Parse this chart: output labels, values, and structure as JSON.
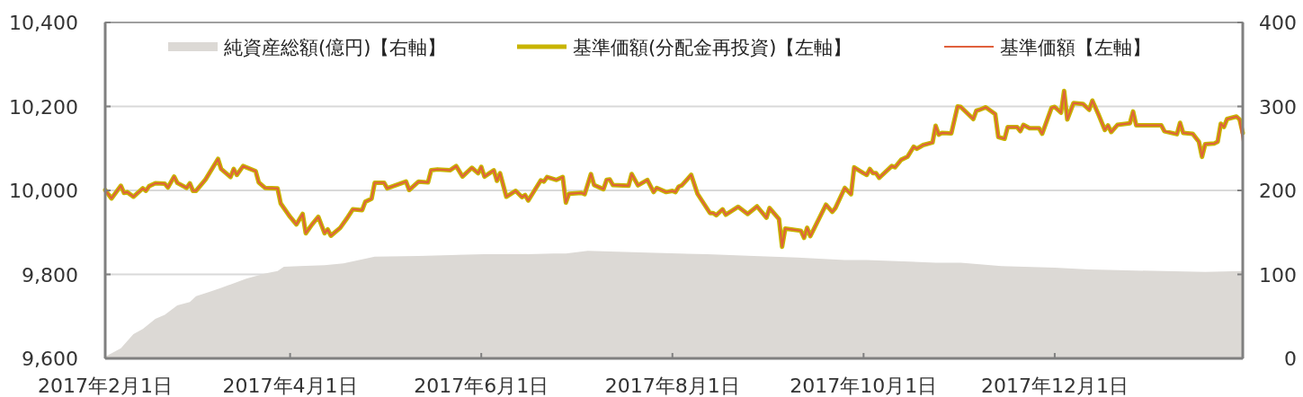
{
  "chart_data": {
    "type": "line",
    "xlim": [
      "2017-02-01",
      "2018-01-30"
    ],
    "xticks": [
      {
        "value": "2017-02-01",
        "label": "2017年2月1日"
      },
      {
        "value": "2017-04-01",
        "label": "2017年4月1日"
      },
      {
        "value": "2017-06-01",
        "label": "2017年6月1日"
      },
      {
        "value": "2017-08-01",
        "label": "2017年8月1日"
      },
      {
        "value": "2017-10-01",
        "label": "2017年10月1日"
      },
      {
        "value": "2017-12-01",
        "label": "2017年12月1日"
      }
    ],
    "ylim": [
      9600,
      10400
    ],
    "yticks": [
      {
        "value": 9600,
        "label": "9,600"
      },
      {
        "value": 9800,
        "label": "9,800"
      },
      {
        "value": 10000,
        "label": "10,000"
      },
      {
        "value": 10200,
        "label": "10,200"
      },
      {
        "value": 10400,
        "label": "10,400"
      }
    ],
    "y2lim": [
      0,
      400
    ],
    "y2ticks": [
      0,
      100,
      200,
      300,
      400
    ],
    "grid": "y",
    "legend": "top",
    "series": [
      {
        "name": "純資産総額(億円)【右軸】",
        "type": "area",
        "axis": "y2",
        "color": "#dcd9d5",
        "x": [
          "2017-02-01",
          "2017-02-02",
          "2017-02-06",
          "2017-02-10",
          "2017-02-13",
          "2017-02-17",
          "2017-02-20",
          "2017-02-24",
          "2017-02-28",
          "2017-03-02",
          "2017-03-06",
          "2017-03-10",
          "2017-03-13",
          "2017-03-18",
          "2017-03-24",
          "2017-03-28",
          "2017-03-30",
          "2017-04-04",
          "2017-04-12",
          "2017-04-18",
          "2017-04-23",
          "2017-04-28",
          "2017-05-12",
          "2017-06-02",
          "2017-06-16",
          "2017-06-24",
          "2017-06-28",
          "2017-07-05",
          "2017-07-24",
          "2017-08-12",
          "2017-08-27",
          "2017-09-10",
          "2017-09-25",
          "2017-10-02",
          "2017-10-24",
          "2017-11-01",
          "2017-11-14",
          "2017-12-01",
          "2017-12-12",
          "2017-12-21",
          "2018-01-18",
          "2018-01-30"
        ],
        "values": [
          2,
          4,
          12,
          29,
          35,
          47,
          52,
          63,
          67,
          74,
          79,
          84,
          88,
          95,
          101,
          104,
          109,
          110,
          111,
          113,
          117,
          121,
          122,
          124,
          124,
          125,
          125,
          128,
          126,
          124,
          122,
          120,
          117,
          117,
          114,
          114,
          110,
          108,
          106,
          105,
          103,
          104
        ]
      },
      {
        "name": "基準価額(分配金再投資)【左軸】",
        "type": "line",
        "color": "#c8b400",
        "x": [
          "2017-02-01",
          "2017-02-03",
          "2017-02-06",
          "2017-02-07",
          "2017-02-08",
          "2017-02-10",
          "2017-02-13",
          "2017-02-14",
          "2017-02-15",
          "2017-02-17",
          "2017-02-20",
          "2017-02-21",
          "2017-02-23",
          "2017-02-24",
          "2017-02-27",
          "2017-02-28",
          "2017-03-01",
          "2017-03-02",
          "2017-03-05",
          "2017-03-09",
          "2017-03-10",
          "2017-03-13",
          "2017-03-14",
          "2017-03-15",
          "2017-03-17",
          "2017-03-21",
          "2017-03-22",
          "2017-03-24",
          "2017-03-28",
          "2017-03-29",
          "2017-04-01",
          "2017-04-03",
          "2017-04-05",
          "2017-04-06",
          "2017-04-08",
          "2017-04-10",
          "2017-04-12",
          "2017-04-13",
          "2017-04-14",
          "2017-04-17",
          "2017-04-19",
          "2017-04-21",
          "2017-04-24",
          "2017-04-25",
          "2017-04-27",
          "2017-04-28",
          "2017-05-01",
          "2017-05-02",
          "2017-05-08",
          "2017-05-09",
          "2017-05-12",
          "2017-05-15",
          "2017-05-16",
          "2017-05-18",
          "2017-05-22",
          "2017-05-24",
          "2017-05-26",
          "2017-05-29",
          "2017-05-31",
          "2017-06-01",
          "2017-06-02",
          "2017-06-05",
          "2017-06-06",
          "2017-06-07",
          "2017-06-09",
          "2017-06-12",
          "2017-06-14",
          "2017-06-15",
          "2017-06-16",
          "2017-06-18",
          "2017-06-20",
          "2017-06-21",
          "2017-06-22",
          "2017-06-25",
          "2017-06-27",
          "2017-06-28",
          "2017-06-29",
          "2017-07-03",
          "2017-07-04",
          "2017-07-06",
          "2017-07-07",
          "2017-07-10",
          "2017-07-11",
          "2017-07-12",
          "2017-07-13",
          "2017-07-18",
          "2017-07-19",
          "2017-07-21",
          "2017-07-24",
          "2017-07-26",
          "2017-07-27",
          "2017-07-30",
          "2017-08-01",
          "2017-08-02",
          "2017-08-03",
          "2017-08-04",
          "2017-08-07",
          "2017-08-09",
          "2017-08-13",
          "2017-08-14",
          "2017-08-15",
          "2017-08-17",
          "2017-08-18",
          "2017-08-22",
          "2017-08-25",
          "2017-08-28",
          "2017-08-31",
          "2017-09-01",
          "2017-09-04",
          "2017-09-05",
          "2017-09-06",
          "2017-09-11",
          "2017-09-12",
          "2017-09-13",
          "2017-09-14",
          "2017-09-19",
          "2017-09-21",
          "2017-09-22",
          "2017-09-25",
          "2017-09-27",
          "2017-09-28",
          "2017-10-01",
          "2017-10-02",
          "2017-10-03",
          "2017-10-04",
          "2017-10-05",
          "2017-10-06",
          "2017-10-10",
          "2017-10-11",
          "2017-10-13",
          "2017-10-15",
          "2017-10-17",
          "2017-10-18",
          "2017-10-20",
          "2017-10-23",
          "2017-10-24",
          "2017-10-25",
          "2017-10-26",
          "2017-10-29",
          "2017-10-31",
          "2017-11-01",
          "2017-11-05",
          "2017-11-06",
          "2017-11-07",
          "2017-11-09",
          "2017-11-12",
          "2017-11-13",
          "2017-11-15",
          "2017-11-16",
          "2017-11-19",
          "2017-11-20",
          "2017-11-21",
          "2017-11-23",
          "2017-11-26",
          "2017-11-27",
          "2017-11-30",
          "2017-12-01",
          "2017-12-03",
          "2017-12-04",
          "2017-12-05",
          "2017-12-07",
          "2017-12-10",
          "2017-12-12",
          "2017-12-13",
          "2017-12-15",
          "2017-12-17",
          "2017-12-18",
          "2017-12-19",
          "2017-12-21",
          "2017-12-25",
          "2017-12-26",
          "2017-12-27",
          "2018-01-04",
          "2018-01-05",
          "2018-01-09",
          "2018-01-10",
          "2018-01-11",
          "2018-01-14",
          "2018-01-16",
          "2018-01-17",
          "2018-01-18",
          "2018-01-21",
          "2018-01-22",
          "2018-01-23",
          "2018-01-24",
          "2018-01-25",
          "2018-01-28",
          "2018-01-29",
          "2018-01-30"
        ],
        "values": [
          10001,
          9981,
          10011,
          9994,
          9996,
          9985,
          10005,
          9999,
          10010,
          10017,
          10016,
          10007,
          10033,
          10018,
          10006,
          10017,
          9999,
          9999,
          10026,
          10075,
          10051,
          10032,
          10051,
          10037,
          10058,
          10046,
          10019,
          10006,
          10005,
          9969,
          9937,
          9919,
          9944,
          9898,
          9919,
          9937,
          9898,
          9907,
          9892,
          9911,
          9932,
          9955,
          9953,
          9973,
          9980,
          10018,
          10018,
          10005,
          10021,
          10001,
          10021,
          10019,
          10048,
          10050,
          10048,
          10058,
          10033,
          10054,
          10041,
          10056,
          10033,
          10048,
          10023,
          10041,
          9985,
          9999,
          9984,
          9989,
          9976,
          10000,
          10024,
          10021,
          10032,
          10025,
          10032,
          9971,
          9992,
          9994,
          9991,
          10039,
          10013,
          10003,
          10025,
          10026,
          10013,
          10011,
          10039,
          10012,
          10025,
          9996,
          10006,
          9996,
          9999,
          9996,
          10009,
          10012,
          10037,
          9992,
          9946,
          9946,
          9941,
          9955,
          9942,
          9961,
          9944,
          9962,
          9935,
          9958,
          9932,
          9866,
          9909,
          9904,
          9887,
          9911,
          9891,
          9966,
          9949,
          9958,
          10006,
          9991,
          10055,
          10041,
          10037,
          10051,
          10041,
          10041,
          10030,
          10058,
          10055,
          10073,
          10080,
          10104,
          10099,
          10108,
          10114,
          10154,
          10133,
          10137,
          10136,
          10200,
          10199,
          10170,
          10190,
          10192,
          10198,
          10182,
          10127,
          10123,
          10151,
          10151,
          10141,
          10156,
          10148,
          10148,
          10135,
          10197,
          10199,
          10185,
          10237,
          10169,
          10208,
          10206,
          10192,
          10214,
          10180,
          10144,
          10155,
          10139,
          10156,
          10160,
          10188,
          10155,
          10155,
          10141,
          10134,
          10161,
          10137,
          10135,
          10116,
          10080,
          10110,
          10112,
          10116,
          10159,
          10151,
          10170,
          10176,
          10169,
          10137
        ]
      },
      {
        "name": "基準価額【左軸】",
        "type": "line",
        "color": "#e0603c",
        "x": [
          "2017-02-01",
          "2017-02-03",
          "2017-02-06",
          "2017-02-07",
          "2017-02-08",
          "2017-02-10",
          "2017-02-13",
          "2017-02-14",
          "2017-02-15",
          "2017-02-17",
          "2017-02-20",
          "2017-02-21",
          "2017-02-23",
          "2017-02-24",
          "2017-02-27",
          "2017-02-28",
          "2017-03-01",
          "2017-03-02",
          "2017-03-05",
          "2017-03-09",
          "2017-03-10",
          "2017-03-13",
          "2017-03-14",
          "2017-03-15",
          "2017-03-17",
          "2017-03-21",
          "2017-03-22",
          "2017-03-24",
          "2017-03-28",
          "2017-03-29",
          "2017-04-01",
          "2017-04-03",
          "2017-04-05",
          "2017-04-06",
          "2017-04-08",
          "2017-04-10",
          "2017-04-12",
          "2017-04-13",
          "2017-04-14",
          "2017-04-17",
          "2017-04-19",
          "2017-04-21",
          "2017-04-24",
          "2017-04-25",
          "2017-04-27",
          "2017-04-28",
          "2017-05-01",
          "2017-05-02",
          "2017-05-08",
          "2017-05-09",
          "2017-05-12",
          "2017-05-15",
          "2017-05-16",
          "2017-05-18",
          "2017-05-22",
          "2017-05-24",
          "2017-05-26",
          "2017-05-29",
          "2017-05-31",
          "2017-06-01",
          "2017-06-02",
          "2017-06-05",
          "2017-06-06",
          "2017-06-07",
          "2017-06-09",
          "2017-06-12",
          "2017-06-14",
          "2017-06-15",
          "2017-06-16",
          "2017-06-18",
          "2017-06-20",
          "2017-06-21",
          "2017-06-22",
          "2017-06-25",
          "2017-06-27",
          "2017-06-28",
          "2017-06-29",
          "2017-07-03",
          "2017-07-04",
          "2017-07-06",
          "2017-07-07",
          "2017-07-10",
          "2017-07-11",
          "2017-07-12",
          "2017-07-13",
          "2017-07-18",
          "2017-07-19",
          "2017-07-21",
          "2017-07-24",
          "2017-07-26",
          "2017-07-27",
          "2017-07-30",
          "2017-08-01",
          "2017-08-02",
          "2017-08-03",
          "2017-08-04",
          "2017-08-07",
          "2017-08-09",
          "2017-08-13",
          "2017-08-14",
          "2017-08-15",
          "2017-08-17",
          "2017-08-18",
          "2017-08-22",
          "2017-08-25",
          "2017-08-28",
          "2017-08-31",
          "2017-09-01",
          "2017-09-04",
          "2017-09-05",
          "2017-09-06",
          "2017-09-11",
          "2017-09-12",
          "2017-09-13",
          "2017-09-14",
          "2017-09-19",
          "2017-09-21",
          "2017-09-22",
          "2017-09-25",
          "2017-09-27",
          "2017-09-28",
          "2017-10-01",
          "2017-10-02",
          "2017-10-03",
          "2017-10-04",
          "2017-10-05",
          "2017-10-06",
          "2017-10-10",
          "2017-10-11",
          "2017-10-13",
          "2017-10-15",
          "2017-10-17",
          "2017-10-18",
          "2017-10-20",
          "2017-10-23",
          "2017-10-24",
          "2017-10-25",
          "2017-10-26",
          "2017-10-29",
          "2017-10-31",
          "2017-11-01",
          "2017-11-05",
          "2017-11-06",
          "2017-11-07",
          "2017-11-09",
          "2017-11-12",
          "2017-11-13",
          "2017-11-15",
          "2017-11-16",
          "2017-11-19",
          "2017-11-20",
          "2017-11-21",
          "2017-11-23",
          "2017-11-26",
          "2017-11-27",
          "2017-11-30",
          "2017-12-01",
          "2017-12-03",
          "2017-12-04",
          "2017-12-05",
          "2017-12-07",
          "2017-12-10",
          "2017-12-12",
          "2017-12-13",
          "2017-12-15",
          "2017-12-17",
          "2017-12-18",
          "2017-12-19",
          "2017-12-21",
          "2017-12-25",
          "2017-12-26",
          "2017-12-27",
          "2018-01-04",
          "2018-01-05",
          "2018-01-09",
          "2018-01-10",
          "2018-01-11",
          "2018-01-14",
          "2018-01-16",
          "2018-01-17",
          "2018-01-18",
          "2018-01-21",
          "2018-01-22",
          "2018-01-23",
          "2018-01-24",
          "2018-01-25",
          "2018-01-28",
          "2018-01-29",
          "2018-01-30"
        ],
        "values": [
          10001,
          9981,
          10011,
          9994,
          9996,
          9985,
          10005,
          9999,
          10010,
          10017,
          10016,
          10007,
          10033,
          10018,
          10006,
          10017,
          9999,
          9999,
          10026,
          10075,
          10051,
          10032,
          10051,
          10037,
          10058,
          10046,
          10019,
          10006,
          10005,
          9969,
          9937,
          9919,
          9944,
          9898,
          9919,
          9937,
          9898,
          9907,
          9892,
          9911,
          9932,
          9955,
          9953,
          9973,
          9980,
          10018,
          10018,
          10005,
          10021,
          10001,
          10021,
          10019,
          10048,
          10050,
          10048,
          10058,
          10033,
          10054,
          10041,
          10056,
          10033,
          10048,
          10023,
          10041,
          9985,
          9999,
          9984,
          9989,
          9976,
          10000,
          10024,
          10021,
          10032,
          10025,
          10032,
          9971,
          9992,
          9994,
          9991,
          10039,
          10013,
          10003,
          10025,
          10026,
          10013,
          10011,
          10039,
          10012,
          10025,
          9996,
          10006,
          9996,
          9999,
          9996,
          10009,
          10012,
          10037,
          9992,
          9946,
          9946,
          9941,
          9955,
          9942,
          9961,
          9944,
          9962,
          9935,
          9958,
          9932,
          9866,
          9909,
          9904,
          9887,
          9911,
          9891,
          9966,
          9949,
          9958,
          10006,
          9991,
          10055,
          10041,
          10037,
          10051,
          10041,
          10041,
          10030,
          10058,
          10055,
          10073,
          10080,
          10104,
          10099,
          10108,
          10114,
          10154,
          10133,
          10137,
          10136,
          10200,
          10199,
          10170,
          10190,
          10192,
          10198,
          10182,
          10127,
          10123,
          10151,
          10151,
          10141,
          10156,
          10148,
          10148,
          10135,
          10197,
          10199,
          10185,
          10237,
          10169,
          10208,
          10206,
          10192,
          10214,
          10180,
          10144,
          10155,
          10139,
          10156,
          10160,
          10188,
          10155,
          10155,
          10141,
          10134,
          10161,
          10137,
          10135,
          10116,
          10080,
          10110,
          10112,
          10116,
          10159,
          10151,
          10170,
          10176,
          10169,
          10116
        ]
      }
    ]
  }
}
